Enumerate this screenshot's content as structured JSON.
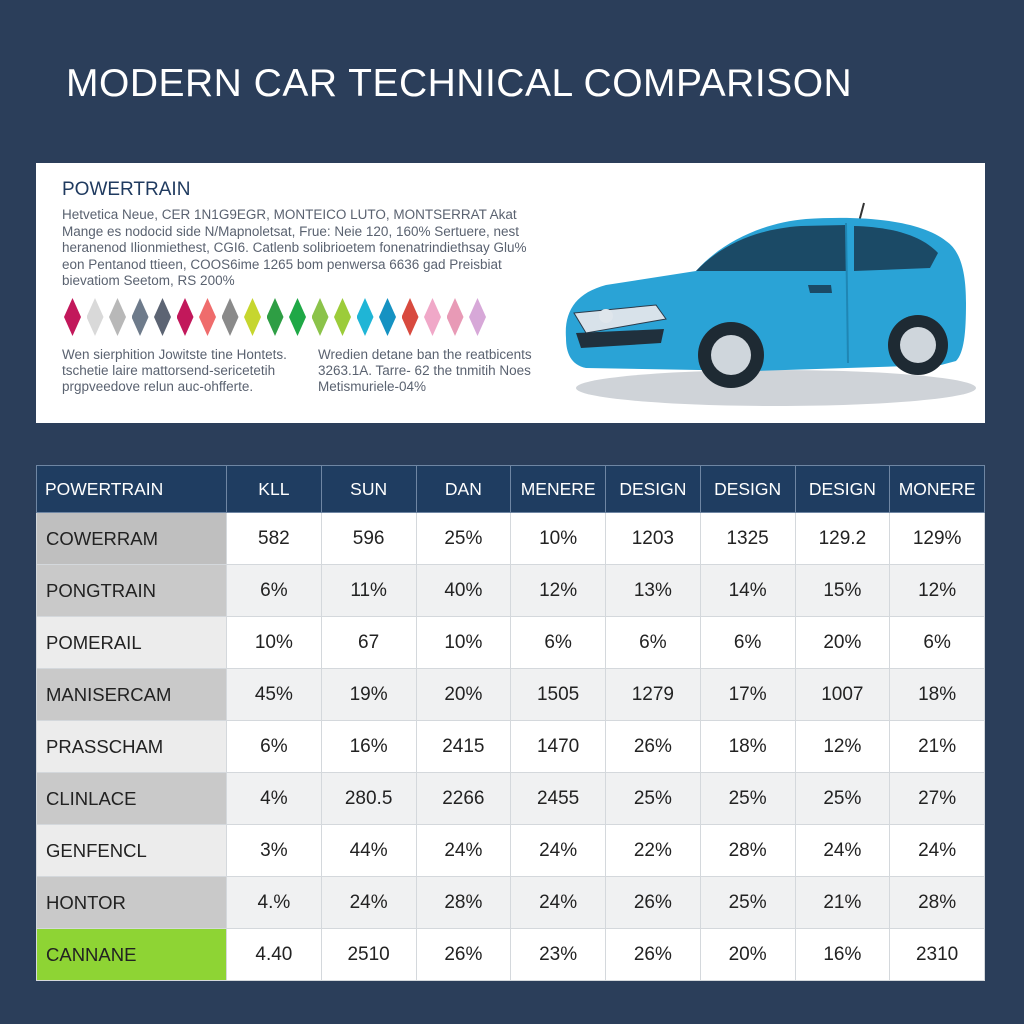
{
  "title": "MODERN CAR TECHNICAL COMPARISON",
  "info_panel": {
    "heading": "POWERTRAIN",
    "paragraph": "Hetvetica Neue, CER 1N1G9EGR, MONTEICO LUTO, MONTSERRAT Akat Mange es nodocid side N/Mapnoletsat, Frue: Neie 120, 160% Sertuere, nest heranenod Ilionmiethest, CGI6. Catlenb solibrioetem fonenatrindiethsay Glu% eon Pentanod ttieen, COOS6ime 1265 bom penwersa 6636 gad Preisbiat bievatiom Seetom, RS 200%",
    "swatch_colors": [
      "#c2185b",
      "#d9d9d9",
      "#b8b8b8",
      "#6e7b8b",
      "#5c6473",
      "#c2185b",
      "#ef6c6c",
      "#8a8a8a",
      "#c6d62f",
      "#2e9e44",
      "#1fa846",
      "#8bc34a",
      "#9ccc3a",
      "#1fb5d6",
      "#1592c2",
      "#d84a3f",
      "#f0a8c8",
      "#e89ab6",
      "#d7a8d8"
    ],
    "note_left": "Wen sierphition Jowitste tine Hontets. tschetie laire mattorsend-sericetetih prgpveedove relun auc-ohfferte.",
    "note_right": "Wredien detane ban the reatbicents 3263.1A. Tarre- 62 the tnmitih Noes Metismuriele-04%",
    "car_color": "#2aa3d6"
  },
  "table": {
    "columns": [
      "POWERTRAIN",
      "KLL",
      "SUN",
      "DAN",
      "MENERE",
      "DESIGN",
      "DESIGN",
      "DESIGN",
      "MONERE"
    ],
    "rows": [
      {
        "label": "COWERRAM",
        "values": [
          "582",
          "596",
          "25%",
          "10%",
          "1203",
          "1325",
          "129.2",
          "129%"
        ]
      },
      {
        "label": "PONGTRAIN",
        "values": [
          "6%",
          "11%",
          "40%",
          "12%",
          "13%",
          "14%",
          "15%",
          "12%"
        ]
      },
      {
        "label": "POMERAIL",
        "values": [
          "10%",
          "67",
          "10%",
          "6%",
          "6%",
          "6%",
          "20%",
          "6%"
        ]
      },
      {
        "label": "MANISERCAM",
        "values": [
          "45%",
          "19%",
          "20%",
          "1505",
          "1279",
          "17%",
          "1007",
          "18%"
        ]
      },
      {
        "label": "PRASSCHAM",
        "values": [
          "6%",
          "16%",
          "2415",
          "1470",
          "26%",
          "18%",
          "12%",
          "21%"
        ]
      },
      {
        "label": "CLINLACE",
        "values": [
          "4%",
          "280.5",
          "2266",
          "2455",
          "25%",
          "25%",
          "25%",
          "27%"
        ]
      },
      {
        "label": "GENFENCL",
        "values": [
          "3%",
          "44%",
          "24%",
          "24%",
          "22%",
          "28%",
          "24%",
          "24%"
        ]
      },
      {
        "label": "HONTOR",
        "values": [
          "4.%",
          "24%",
          "28%",
          "24%",
          "26%",
          "25%",
          "21%",
          "28%"
        ]
      },
      {
        "label": "CANNANE",
        "values": [
          "4.40",
          "2510",
          "26%",
          "23%",
          "26%",
          "20%",
          "16%",
          "2310"
        ]
      }
    ]
  }
}
